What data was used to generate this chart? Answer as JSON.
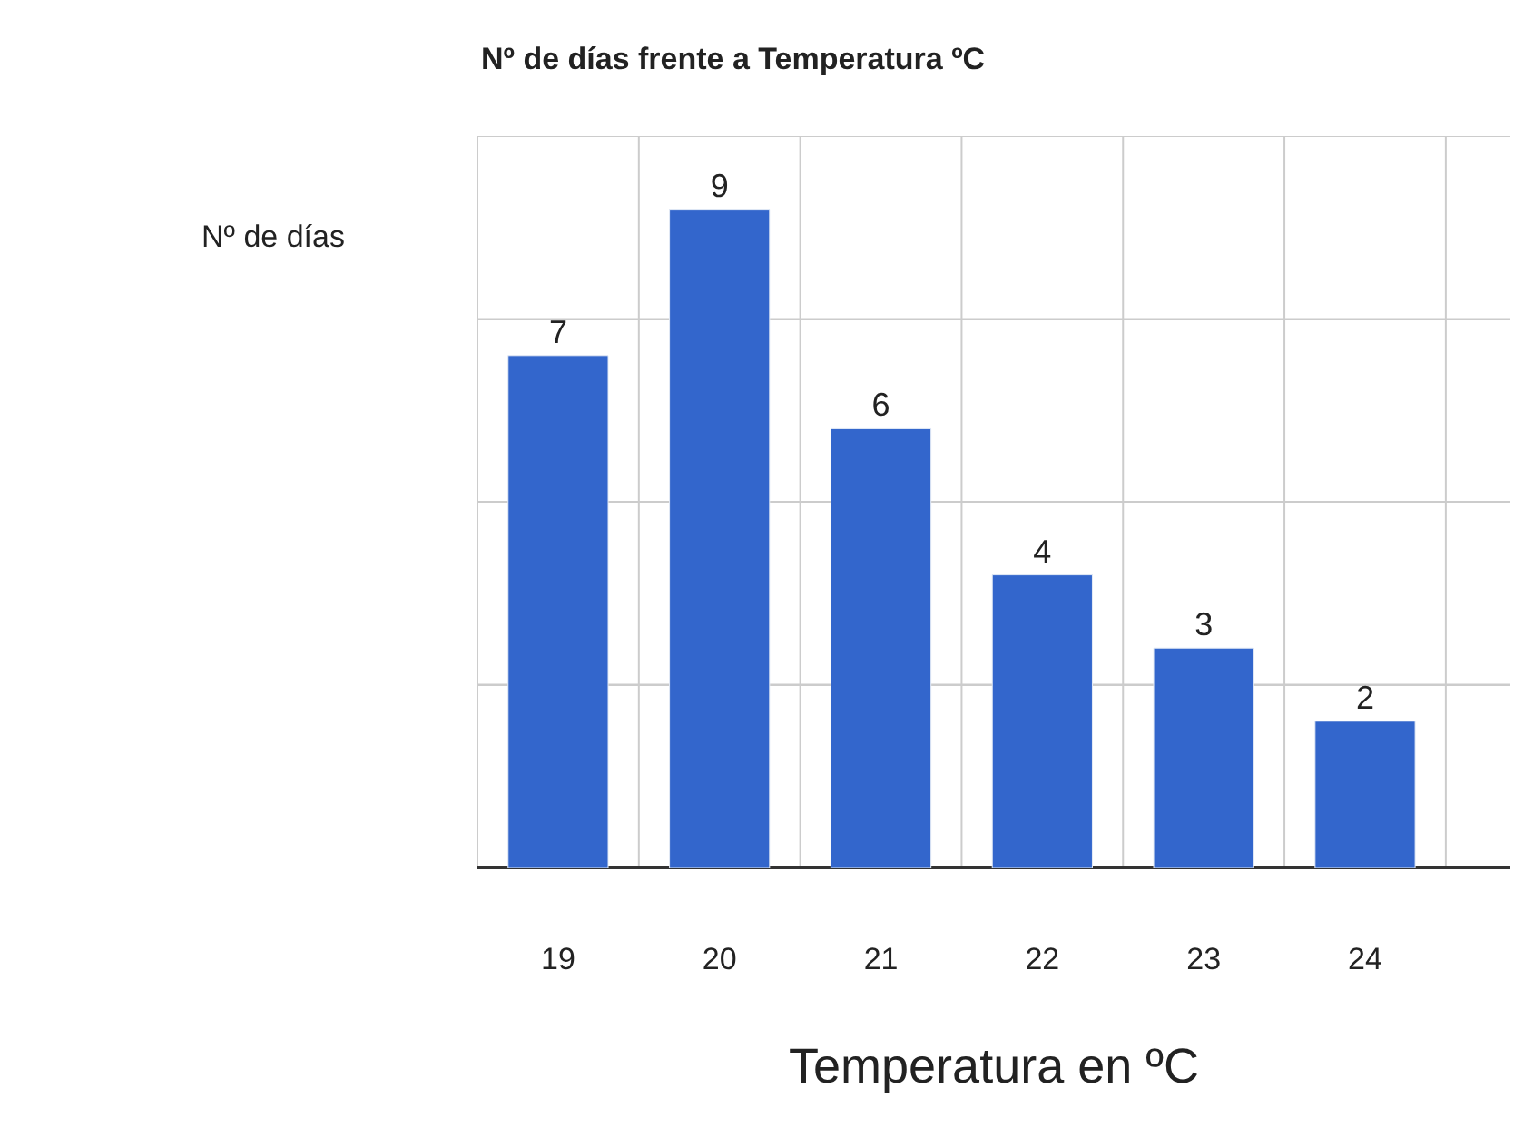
{
  "chart_data": {
    "type": "bar",
    "title": "Nº de días frente a Temperatura ºC",
    "xlabel": "Temperatura en ºC",
    "ylabel": "Nº de días",
    "categories": [
      "19",
      "20",
      "21",
      "22",
      "23",
      "24"
    ],
    "series": [
      {
        "color": "#3366cc",
        "values": [
          7,
          9,
          6,
          4,
          3,
          2
        ]
      }
    ],
    "ylim": [
      0,
      10
    ],
    "yticks": [
      {
        "value": 0,
        "label": null
      },
      {
        "value": 2.5,
        "label": null
      },
      {
        "value": 5,
        "label": null
      },
      {
        "value": 7.5,
        "label": null
      },
      {
        "value": 10,
        "label": null
      }
    ],
    "tick_labels": "x",
    "grid": true,
    "data_labels": true
  }
}
